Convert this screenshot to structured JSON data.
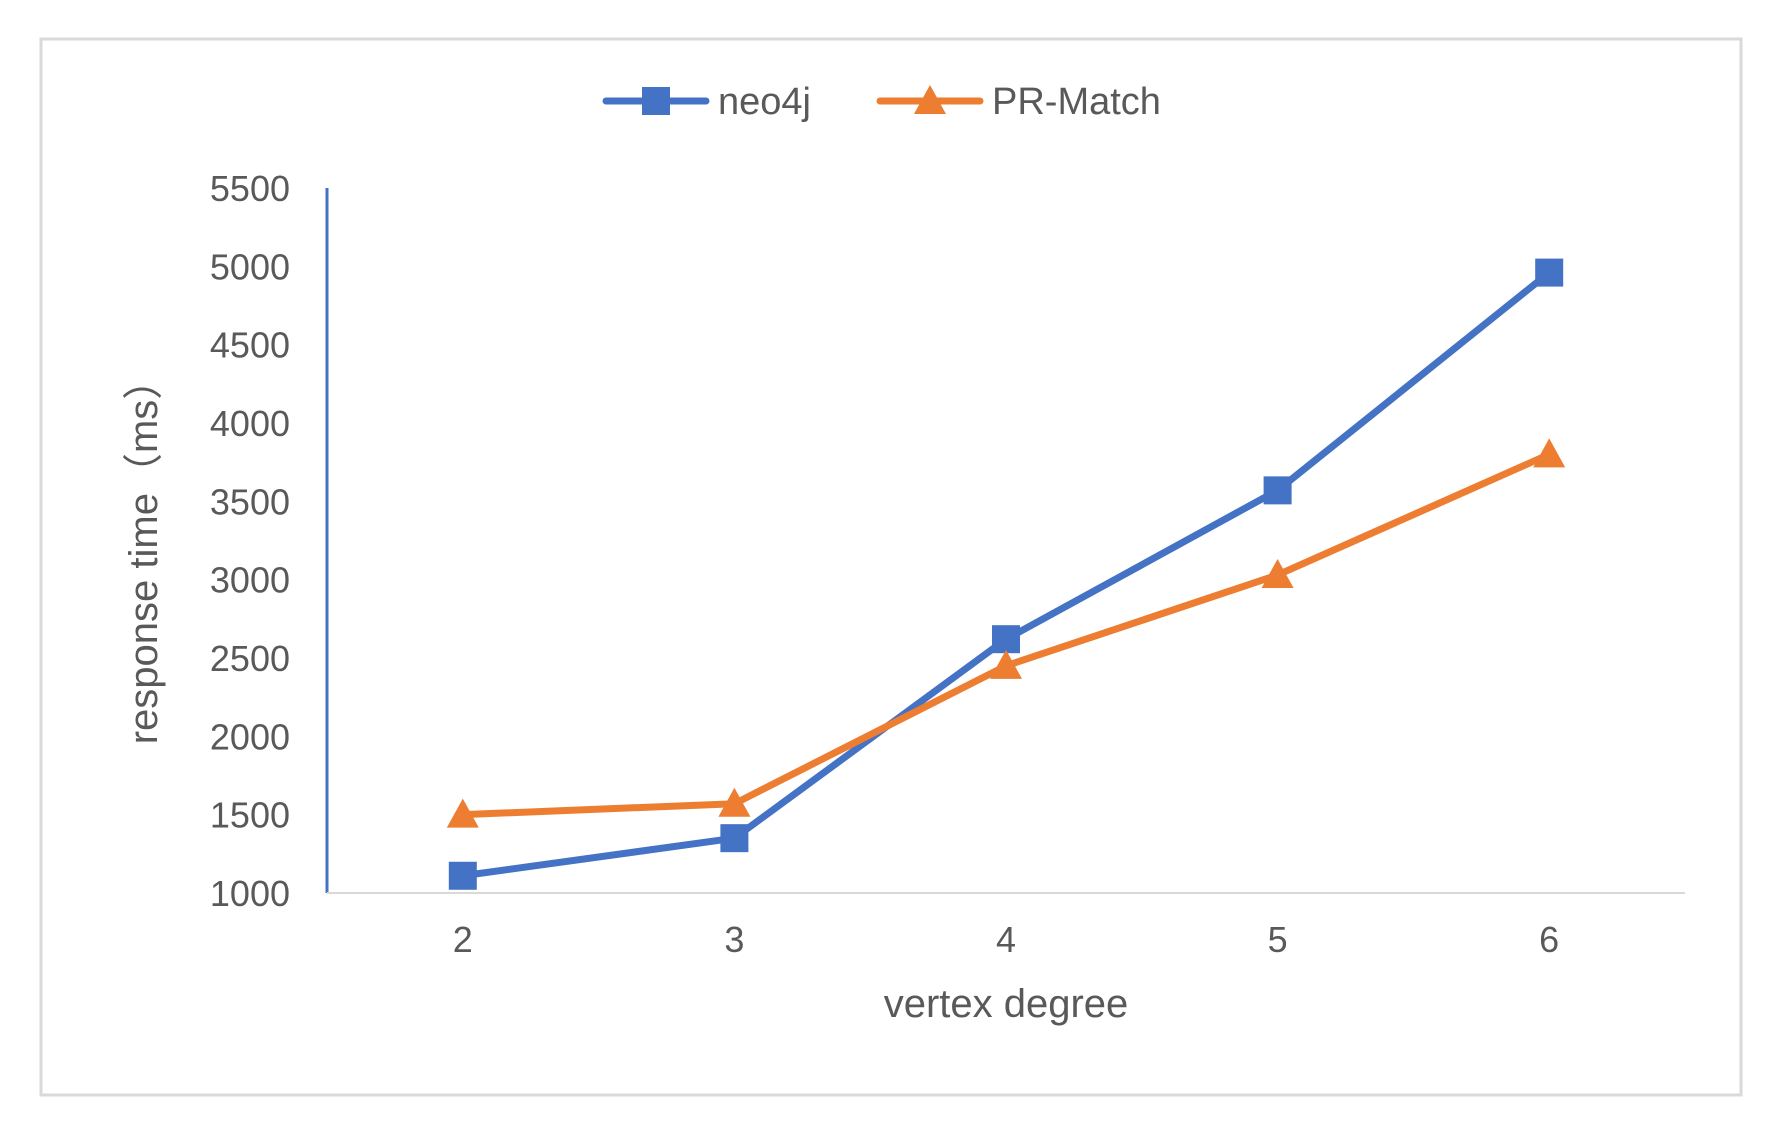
{
  "chart_data": {
    "type": "line",
    "title": "",
    "xlabel": "vertex degree",
    "ylabel": "response time（ms）",
    "categories": [
      "2",
      "3",
      "4",
      "5",
      "6"
    ],
    "ylim": [
      1000,
      5500
    ],
    "yticks": [
      "1000",
      "1500",
      "2000",
      "2500",
      "3000",
      "3500",
      "4000",
      "4500",
      "5000",
      "5500"
    ],
    "grid": false,
    "legend_position": "top",
    "series": [
      {
        "name": "neo4j",
        "values": [
          1110,
          1350,
          2620,
          3570,
          4960
        ],
        "color": "#4472C4",
        "marker": "square"
      },
      {
        "name": "PR-Match",
        "values": [
          1500,
          1570,
          2450,
          3030,
          3800
        ],
        "color": "#ED7D31",
        "marker": "triangle"
      }
    ]
  }
}
